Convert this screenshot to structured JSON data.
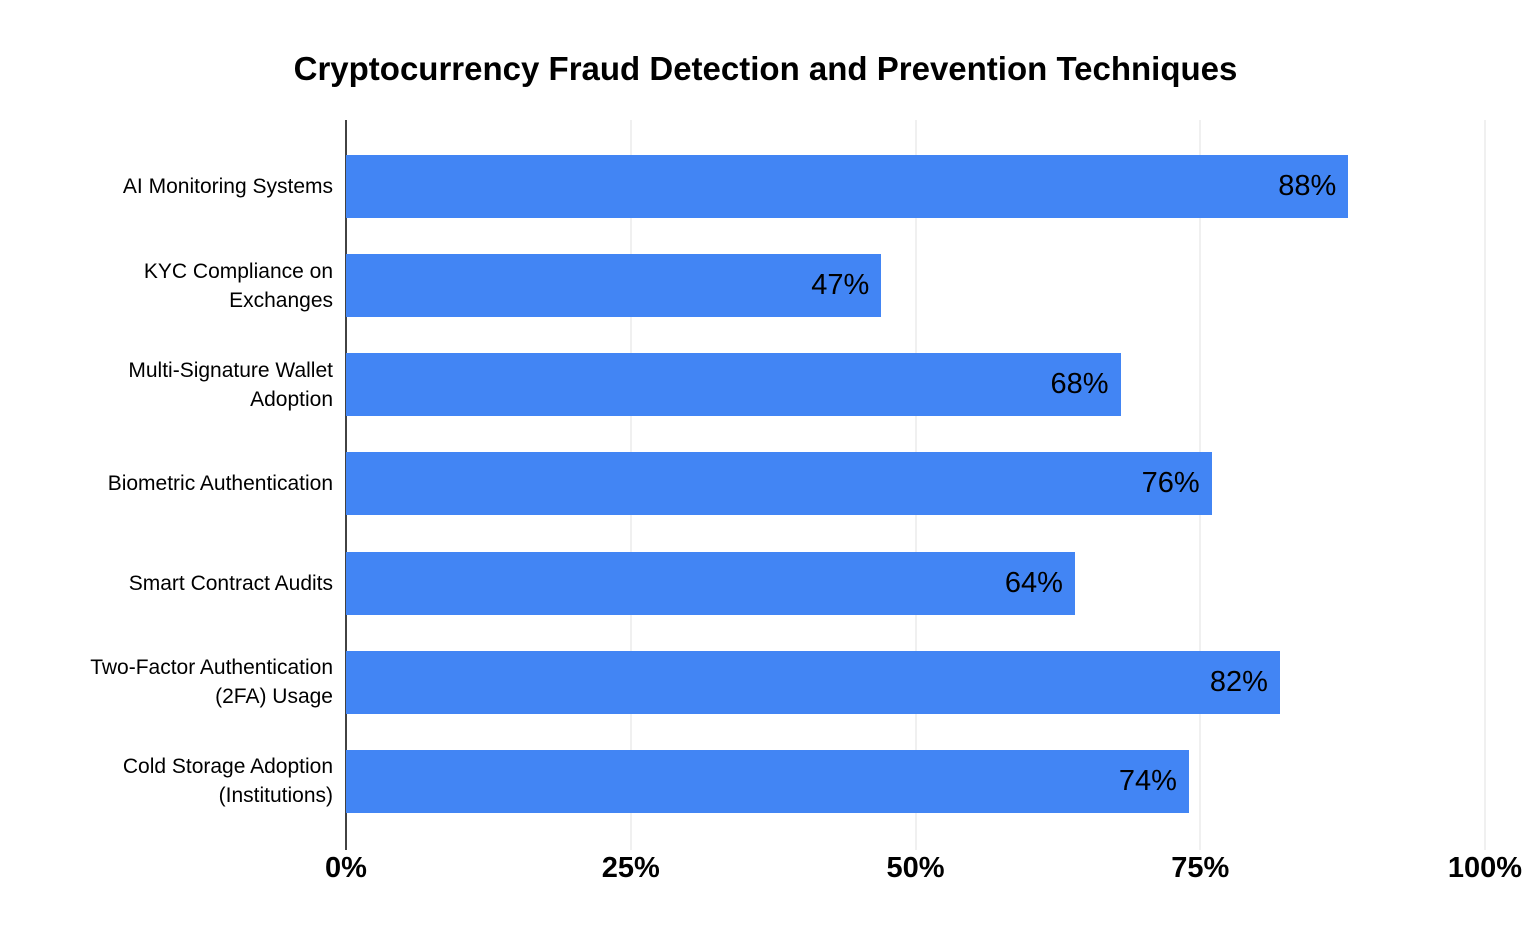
{
  "chart_data": {
    "type": "bar",
    "orientation": "horizontal",
    "title": "Cryptocurrency Fraud Detection and Prevention Techniques",
    "categories": [
      "AI Monitoring Systems",
      "KYC Compliance on Exchanges",
      "Multi-Signature Wallet Adoption",
      "Biometric Authentication",
      "Smart Contract Audits",
      "Two-Factor Authentication (2FA) Usage",
      "Cold Storage Adoption (Institutions)"
    ],
    "values": [
      88,
      47,
      68,
      76,
      64,
      82,
      74
    ],
    "value_labels": [
      "88%",
      "47%",
      "68%",
      "76%",
      "64%",
      "82%",
      "74%"
    ],
    "xlabel": "",
    "ylabel": "",
    "xlim": [
      0,
      100
    ],
    "x_ticks": [
      {
        "value": 0,
        "label": "0%"
      },
      {
        "value": 25,
        "label": "25%"
      },
      {
        "value": 50,
        "label": "50%"
      },
      {
        "value": 75,
        "label": "75%"
      },
      {
        "value": 100,
        "label": "100%"
      }
    ],
    "grid": true,
    "legend": "none",
    "value_label_position": "inside-end",
    "colors": {
      "bar": "#4285f4",
      "value_label": "#000000",
      "gridline": "#e0e0e0",
      "axis_line": "#424242",
      "tick_label": "#000000",
      "category_label": "#000000",
      "title": "#000000",
      "background": "#ffffff"
    }
  }
}
